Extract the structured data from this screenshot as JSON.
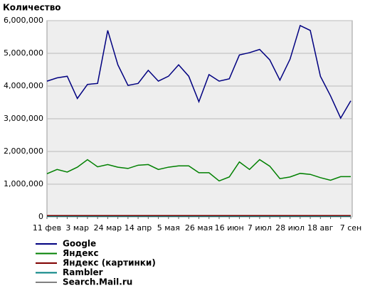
{
  "chart_data": {
    "type": "line",
    "title": "Количество",
    "categories": [
      "11 фев",
      null,
      null,
      "3 мар",
      null,
      null,
      "24 мар",
      null,
      null,
      "14 апр",
      null,
      null,
      "5 мая",
      null,
      null,
      "26 мая",
      null,
      null,
      "16 июн",
      null,
      null,
      "7 июл",
      null,
      null,
      "28 июл",
      null,
      null,
      "18 авг",
      null,
      null,
      "7 сен"
    ],
    "ylim": [
      0,
      6000000
    ],
    "yticks": [
      0,
      {
        "value": 1000000,
        "label": "1,000,000"
      },
      {
        "value": 2000000,
        "label": "2,000,000"
      },
      {
        "value": 3000000,
        "label": "3,000,000"
      },
      {
        "value": 4000000,
        "label": "4,000,000"
      },
      {
        "value": 5000000,
        "label": "5,000,000"
      },
      {
        "value": 6000000,
        "label": "6,000,000"
      }
    ],
    "grid": true,
    "series": [
      {
        "name": "Google",
        "color": "#000080",
        "values": [
          4150000,
          4250000,
          4300000,
          3620000,
          4050000,
          4080000,
          5700000,
          4650000,
          4020000,
          4080000,
          4480000,
          4150000,
          4300000,
          4650000,
          4300000,
          3520000,
          4350000,
          4150000,
          4220000,
          4950000,
          5020000,
          5120000,
          4800000,
          4180000,
          4820000,
          5850000,
          5700000,
          4300000,
          3700000,
          3020000,
          3550000
        ]
      },
      {
        "name": "Яндекс",
        "color": "#008000",
        "values": [
          1320000,
          1450000,
          1370000,
          1520000,
          1750000,
          1530000,
          1600000,
          1520000,
          1480000,
          1580000,
          1600000,
          1450000,
          1520000,
          1560000,
          1560000,
          1350000,
          1350000,
          1100000,
          1220000,
          1680000,
          1450000,
          1750000,
          1550000,
          1170000,
          1220000,
          1330000,
          1300000,
          1200000,
          1120000,
          1230000,
          1230000
        ]
      },
      {
        "name": "Яндекс (картинки)",
        "color": "#800000",
        "values": [
          40000,
          40000,
          40000,
          40000,
          40000,
          40000,
          40000,
          40000,
          40000,
          40000,
          40000,
          40000,
          40000,
          40000,
          40000,
          40000,
          40000,
          40000,
          40000,
          40000,
          40000,
          40000,
          40000,
          40000,
          40000,
          40000,
          40000,
          40000,
          40000,
          40000,
          40000
        ]
      },
      {
        "name": "Rambler",
        "color": "#008080",
        "values": [
          20000,
          20000,
          20000,
          20000,
          20000,
          20000,
          20000,
          20000,
          20000,
          20000,
          20000,
          20000,
          20000,
          20000,
          20000,
          20000,
          20000,
          20000,
          20000,
          20000,
          20000,
          20000,
          20000,
          20000,
          20000,
          20000,
          20000,
          20000,
          20000,
          20000,
          20000
        ]
      },
      {
        "name": "Search.Mail.ru",
        "color": "#808080",
        "values": [
          10000,
          10000,
          10000,
          10000,
          10000,
          10000,
          10000,
          10000,
          10000,
          10000,
          10000,
          10000,
          10000,
          10000,
          10000,
          10000,
          10000,
          10000,
          10000,
          10000,
          10000,
          10000,
          10000,
          10000,
          10000,
          10000,
          10000,
          10000,
          10000,
          10000,
          10000
        ]
      }
    ]
  }
}
